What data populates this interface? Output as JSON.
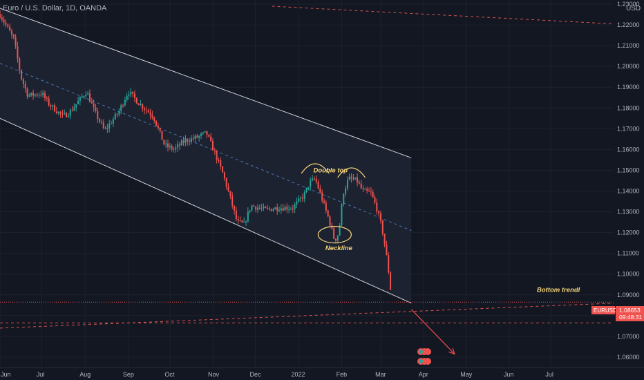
{
  "header": {
    "symbol_title": "Euro / U.S. Dollar, 1D, OANDA"
  },
  "colors": {
    "background": "#131722",
    "up": "#26a69a",
    "down": "#ef5350",
    "annotation": "#f7d57a",
    "channel": "#d1d4dc",
    "axis_text": "#b2b5be",
    "price_badge": "#ef5350"
  },
  "price_badge": {
    "symbol": "EURUSD",
    "price": "1.08653",
    "countdown": "09:48:31"
  },
  "chart_data": {
    "type": "candlestick",
    "currency_label": "USD",
    "x_ticks": [
      "Jun",
      "Jul",
      "Aug",
      "Sep",
      "Oct",
      "Nov",
      "Dec",
      "2022",
      "Feb",
      "Mar",
      "Apr",
      "May",
      "Jun",
      "Jul"
    ],
    "y_ticks": [
      "1.23000",
      "1.22000",
      "1.21000",
      "1.20000",
      "1.19000",
      "1.18000",
      "1.17000",
      "1.16000",
      "1.15000",
      "1.14000",
      "1.13000",
      "1.12000",
      "1.11000",
      "1.10000",
      "1.09000",
      "1.08000",
      "1.07000",
      "1.06000"
    ],
    "ylim": [
      1.055,
      1.232
    ],
    "x_range_days": [
      0,
      440
    ],
    "tick_days": [
      0,
      30,
      61,
      92,
      122,
      153,
      183,
      214,
      245,
      273,
      304,
      334,
      365,
      395
    ],
    "annotations": [
      {
        "text": "Double top",
        "day": 237,
        "price": 1.149
      },
      {
        "text": "Neckline",
        "day": 243,
        "price": 1.1115
      },
      {
        "text": "Bottom trendl",
        "day": 385,
        "price": 1.0915
      }
    ],
    "anchors": [
      [
        0,
        1.225
      ],
      [
        10,
        1.213
      ],
      [
        15,
        1.195
      ],
      [
        20,
        1.186
      ],
      [
        30,
        1.187
      ],
      [
        35,
        1.182
      ],
      [
        45,
        1.176
      ],
      [
        50,
        1.178
      ],
      [
        62,
        1.188
      ],
      [
        68,
        1.178
      ],
      [
        75,
        1.169
      ],
      [
        85,
        1.178
      ],
      [
        92,
        1.188
      ],
      [
        100,
        1.182
      ],
      [
        110,
        1.176
      ],
      [
        118,
        1.162
      ],
      [
        125,
        1.16
      ],
      [
        132,
        1.164
      ],
      [
        142,
        1.166
      ],
      [
        148,
        1.168
      ],
      [
        153,
        1.16
      ],
      [
        160,
        1.148
      ],
      [
        165,
        1.137
      ],
      [
        170,
        1.125
      ],
      [
        175,
        1.124
      ],
      [
        180,
        1.133
      ],
      [
        190,
        1.131
      ],
      [
        200,
        1.132
      ],
      [
        210,
        1.132
      ],
      [
        218,
        1.138
      ],
      [
        222,
        1.144
      ],
      [
        226,
        1.146
      ],
      [
        232,
        1.134
      ],
      [
        236,
        1.126
      ],
      [
        240,
        1.116
      ],
      [
        243,
        1.12
      ],
      [
        246,
        1.139
      ],
      [
        250,
        1.146
      ],
      [
        256,
        1.145
      ],
      [
        260,
        1.14
      ],
      [
        266,
        1.139
      ],
      [
        270,
        1.132
      ],
      [
        274,
        1.122
      ],
      [
        278,
        1.105
      ],
      [
        281,
        1.087
      ]
    ],
    "channel": {
      "upper": [
        [
          0,
          1.228
        ],
        [
          295,
          1.156
        ]
      ],
      "lower": [
        [
          0,
          1.175
        ],
        [
          295,
          1.086
        ]
      ],
      "mid": [
        [
          0,
          1.2015
        ],
        [
          295,
          1.121
        ]
      ]
    },
    "dashed_lines": [
      [
        [
          195,
          1.229
        ],
        [
          440,
          1.2205
        ]
      ],
      [
        [
          0,
          1.074
        ],
        [
          440,
          1.086
        ]
      ],
      [
        [
          0,
          1.0765
        ],
        [
          440,
          1.0765
        ]
      ]
    ],
    "forecast_arrow": [
      [
        295,
        1.083
      ],
      [
        326,
        1.0615
      ]
    ]
  }
}
